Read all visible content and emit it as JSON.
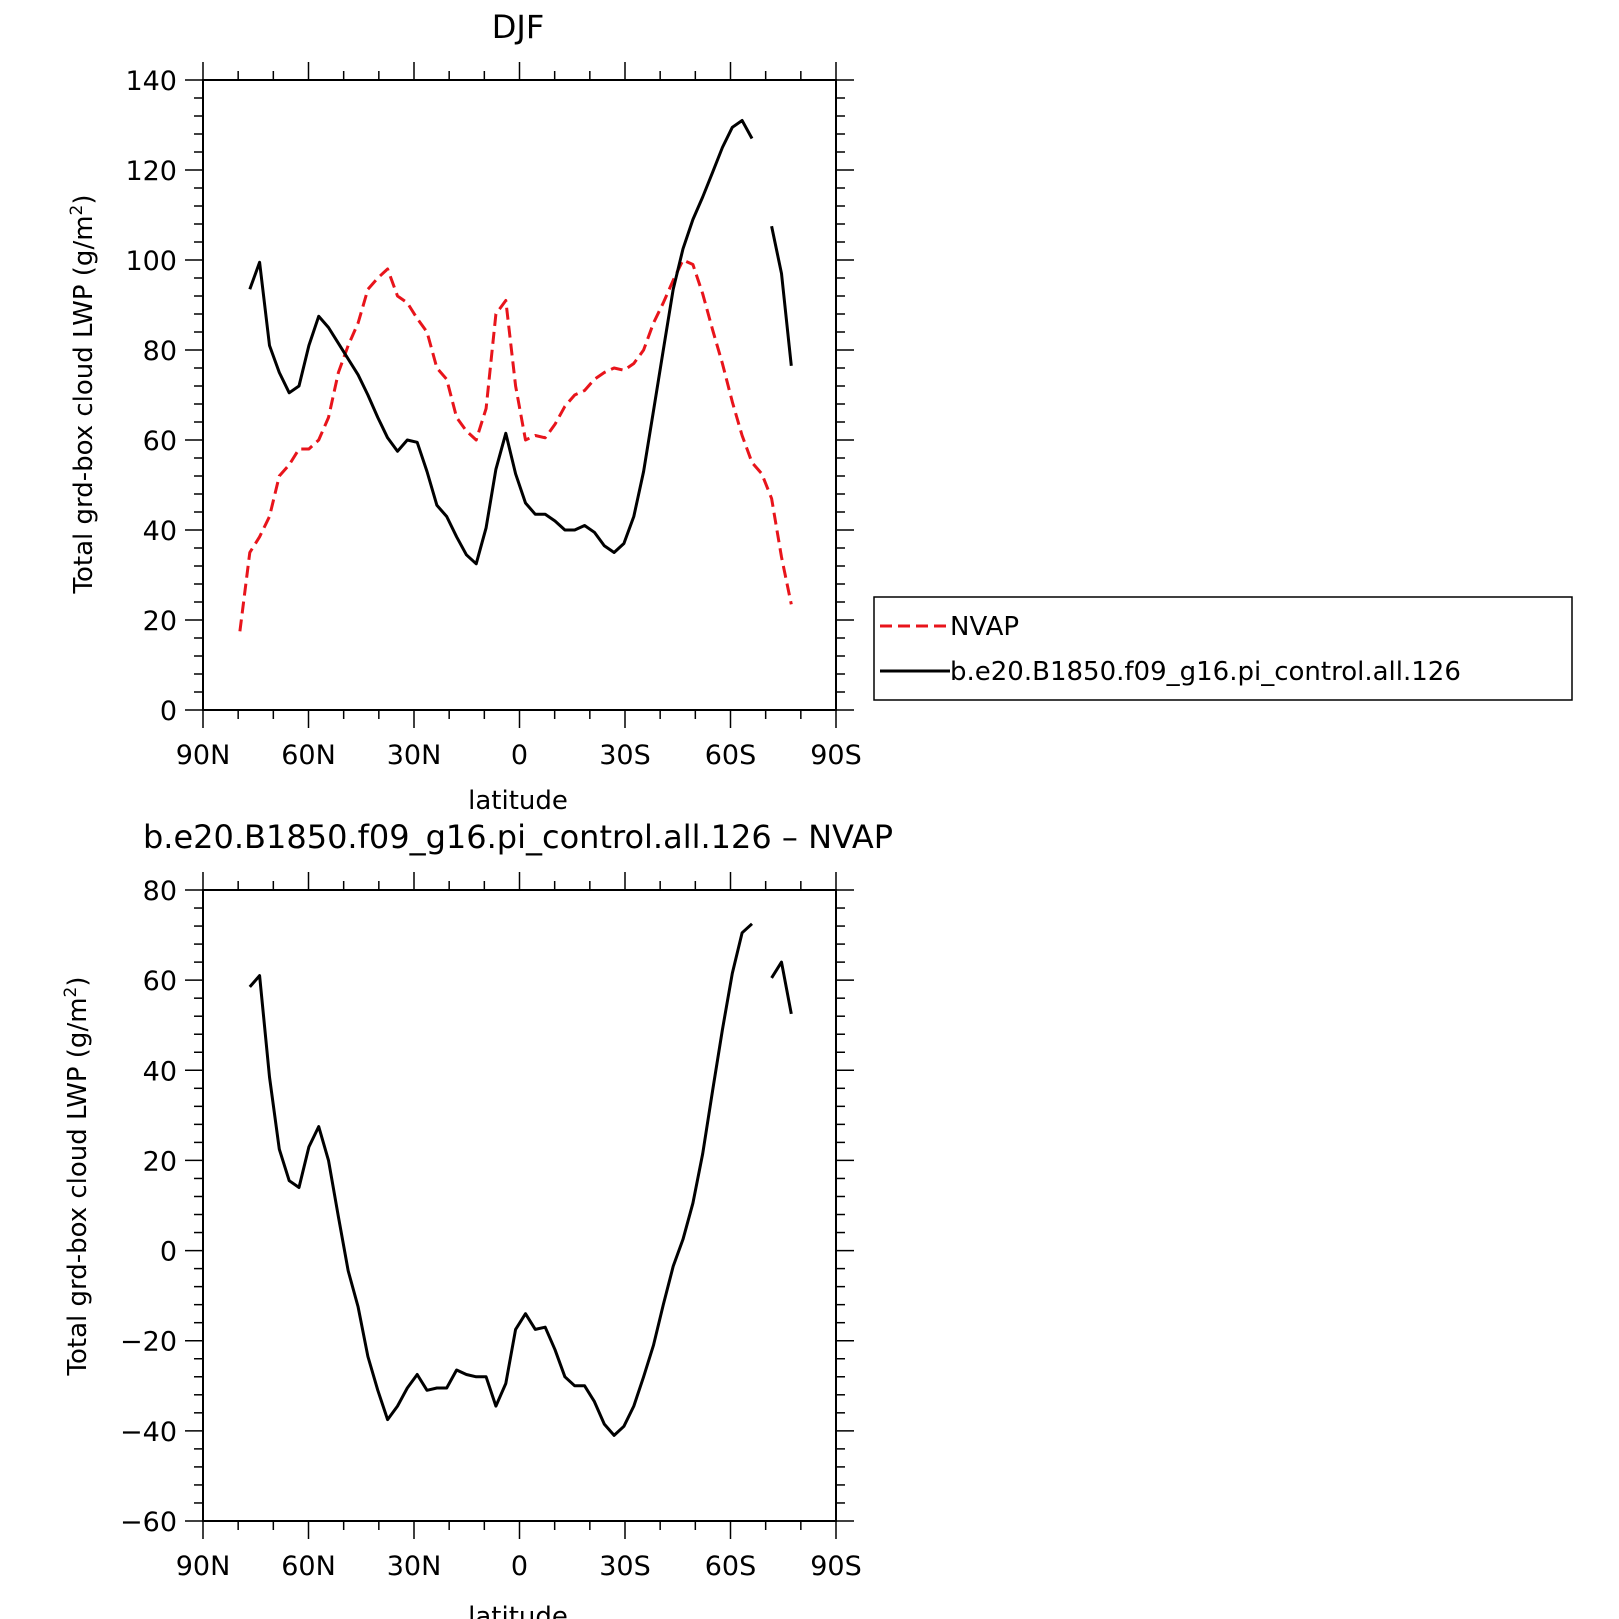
{
  "chart_data": [
    {
      "type": "line",
      "title": "DJF",
      "xlabel": "latitude",
      "ylabel": "Total grd-box cloud LWP (g/m²)",
      "ylim": [
        0,
        140
      ],
      "yticks": [
        0,
        20,
        40,
        60,
        80,
        100,
        120,
        140
      ],
      "xlim": [
        90,
        -90
      ],
      "xticks": [
        90,
        60,
        30,
        0,
        -30,
        -60,
        -90
      ],
      "xtick_labels": [
        "90N",
        "60N",
        "30N",
        "0",
        "30S",
        "60S",
        "90S"
      ],
      "legend": {
        "placement": "right-outside",
        "entries": [
          "NVAP",
          "b.e20.B1850.f09_g16.pi_control.all.126"
        ]
      },
      "series": [
        {
          "name": "NVAP",
          "color": "#e8141b",
          "style": "dashed",
          "segments": [
            [
              [
                79.5,
                17.5
              ],
              [
                76.7,
                35
              ],
              [
                73.9,
                38.5
              ],
              [
                71.1,
                43
              ],
              [
                68.3,
                52
              ],
              [
                65.5,
                54.5
              ],
              [
                62.7,
                58
              ],
              [
                59.9,
                58
              ],
              [
                57.1,
                60
              ],
              [
                54.3,
                65
              ],
              [
                51.5,
                75
              ],
              [
                48.7,
                81
              ],
              [
                45.9,
                86
              ],
              [
                43.1,
                93.5
              ],
              [
                40.3,
                96
              ],
              [
                37.5,
                98
              ],
              [
                34.7,
                92
              ],
              [
                31.9,
                90.5
              ],
              [
                29.1,
                87
              ],
              [
                26.3,
                84
              ],
              [
                23.5,
                76
              ],
              [
                20.7,
                73.5
              ],
              [
                17.9,
                65
              ],
              [
                15.1,
                62
              ],
              [
                12.3,
                60
              ],
              [
                9.5,
                67
              ],
              [
                6.7,
                88
              ],
              [
                3.9,
                91
              ],
              [
                1.1,
                72
              ],
              [
                -1.7,
                60
              ],
              [
                -4.5,
                61
              ],
              [
                -7.3,
                60.5
              ],
              [
                -10.1,
                63.5
              ],
              [
                -12.9,
                67.5
              ],
              [
                -15.7,
                70
              ],
              [
                -18.5,
                71
              ],
              [
                -21.3,
                73.5
              ],
              [
                -24.1,
                75
              ],
              [
                -26.9,
                76
              ],
              [
                -29.7,
                75.5
              ],
              [
                -32.5,
                77
              ],
              [
                -35.3,
                80
              ],
              [
                -38.1,
                86
              ],
              [
                -40.9,
                90.5
              ],
              [
                -43.7,
                95.5
              ],
              [
                -46.5,
                100
              ],
              [
                -49.3,
                99
              ],
              [
                -52.1,
                92.5
              ],
              [
                -54.9,
                84.5
              ],
              [
                -57.7,
                77
              ],
              [
                -60.5,
                68.5
              ],
              [
                -63.3,
                61
              ],
              [
                -66.1,
                55
              ],
              [
                -68.9,
                52.5
              ],
              [
                -71.7,
                47
              ],
              [
                -74.5,
                34
              ],
              [
                -77.3,
                23.5
              ]
            ]
          ]
        },
        {
          "name": "b.e20.B1850.f09_g16.pi_control.all.126",
          "color": "#000000",
          "style": "solid",
          "segments": [
            [
              [
                76.7,
                93.5
              ],
              [
                73.9,
                99.5
              ],
              [
                71.1,
                81
              ],
              [
                68.3,
                75
              ],
              [
                65.5,
                70.5
              ],
              [
                62.7,
                72
              ],
              [
                59.9,
                81
              ],
              [
                57.1,
                87.5
              ],
              [
                54.3,
                85
              ],
              [
                51.5,
                81.5
              ],
              [
                48.7,
                78
              ],
              [
                45.9,
                74.5
              ],
              [
                43.1,
                70
              ],
              [
                40.3,
                65
              ],
              [
                37.5,
                60.5
              ],
              [
                34.7,
                57.5
              ],
              [
                31.9,
                60
              ],
              [
                29.1,
                59.5
              ],
              [
                26.3,
                53
              ],
              [
                23.5,
                45.5
              ],
              [
                20.7,
                43
              ],
              [
                17.9,
                38.5
              ],
              [
                15.1,
                34.5
              ],
              [
                12.3,
                32.5
              ],
              [
                9.5,
                40.5
              ],
              [
                6.7,
                53.5
              ],
              [
                3.9,
                61.5
              ],
              [
                1.1,
                52.5
              ],
              [
                -1.7,
                46
              ],
              [
                -4.5,
                43.5
              ],
              [
                -7.3,
                43.5
              ],
              [
                -10.1,
                42
              ],
              [
                -12.9,
                40
              ],
              [
                -15.7,
                40
              ],
              [
                -18.5,
                41
              ],
              [
                -21.3,
                39.5
              ],
              [
                -24.1,
                36.5
              ],
              [
                -26.9,
                35
              ],
              [
                -29.7,
                37
              ],
              [
                -32.5,
                43
              ],
              [
                -35.3,
                53
              ],
              [
                -38.1,
                66.5
              ],
              [
                -40.9,
                80
              ],
              [
                -43.7,
                93.5
              ],
              [
                -46.5,
                102.5
              ],
              [
                -49.3,
                109
              ],
              [
                -52.1,
                114
              ],
              [
                -54.9,
                119.5
              ],
              [
                -57.7,
                125
              ],
              [
                -60.5,
                129.5
              ],
              [
                -63.3,
                131
              ],
              [
                -66.1,
                127
              ]
            ],
            [
              [
                -71.7,
                107.5
              ],
              [
                -74.5,
                97
              ],
              [
                -77.3,
                76.5
              ]
            ]
          ]
        }
      ]
    },
    {
      "type": "line",
      "title": "b.e20.B1850.f09_g16.pi_control.all.126 – NVAP",
      "xlabel": "latitude",
      "ylabel": "Total grd-box cloud LWP (g/m²)",
      "ylim": [
        -60,
        80
      ],
      "yticks": [
        -60,
        -40,
        -20,
        0,
        20,
        40,
        60,
        80
      ],
      "xlim": [
        90,
        -90
      ],
      "xticks": [
        90,
        60,
        30,
        0,
        -30,
        -60,
        -90
      ],
      "xtick_labels": [
        "90N",
        "60N",
        "30N",
        "0",
        "30S",
        "60S",
        "90S"
      ],
      "series": [
        {
          "color": "#000000",
          "style": "solid",
          "segments": [
            [
              [
                76.7,
                58.5
              ],
              [
                73.9,
                61
              ],
              [
                71.1,
                38.5
              ],
              [
                68.3,
                22.5
              ],
              [
                65.5,
                15.5
              ],
              [
                62.7,
                14
              ],
              [
                59.9,
                23
              ],
              [
                57.1,
                27.5
              ],
              [
                54.3,
                20
              ],
              [
                51.5,
                7.5
              ],
              [
                48.7,
                -4.5
              ],
              [
                45.9,
                -12.5
              ],
              [
                43.1,
                -23.5
              ],
              [
                40.3,
                -31
              ],
              [
                37.5,
                -37.5
              ],
              [
                34.7,
                -34.5
              ],
              [
                31.9,
                -30.5
              ],
              [
                29.1,
                -27.5
              ],
              [
                26.3,
                -31
              ],
              [
                23.5,
                -30.5
              ],
              [
                20.7,
                -30.5
              ],
              [
                17.9,
                -26.5
              ],
              [
                15.1,
                -27.5
              ],
              [
                12.3,
                -28
              ],
              [
                9.5,
                -28
              ],
              [
                6.7,
                -34.5
              ],
              [
                3.9,
                -29.5
              ],
              [
                1.1,
                -17.5
              ],
              [
                -1.7,
                -14
              ],
              [
                -4.5,
                -17.5
              ],
              [
                -7.3,
                -17
              ],
              [
                -10.1,
                -22
              ],
              [
                -12.9,
                -28
              ],
              [
                -15.7,
                -30
              ],
              [
                -18.5,
                -30
              ],
              [
                -21.3,
                -33.5
              ],
              [
                -24.1,
                -38.5
              ],
              [
                -26.9,
                -41
              ],
              [
                -29.7,
                -39
              ],
              [
                -32.5,
                -34.5
              ],
              [
                -35.3,
                -28
              ],
              [
                -38.1,
                -21
              ],
              [
                -40.9,
                -12
              ],
              [
                -43.7,
                -3.5
              ],
              [
                -46.5,
                2.5
              ],
              [
                -49.3,
                10.5
              ],
              [
                -52.1,
                21.5
              ],
              [
                -54.9,
                35.5
              ],
              [
                -57.7,
                49
              ],
              [
                -60.5,
                61.5
              ],
              [
                -63.3,
                70.5
              ],
              [
                -66.1,
                72.5
              ]
            ],
            [
              [
                -71.7,
                60.5
              ],
              [
                -74.5,
                64
              ],
              [
                -77.3,
                52.5
              ]
            ]
          ]
        }
      ]
    }
  ]
}
